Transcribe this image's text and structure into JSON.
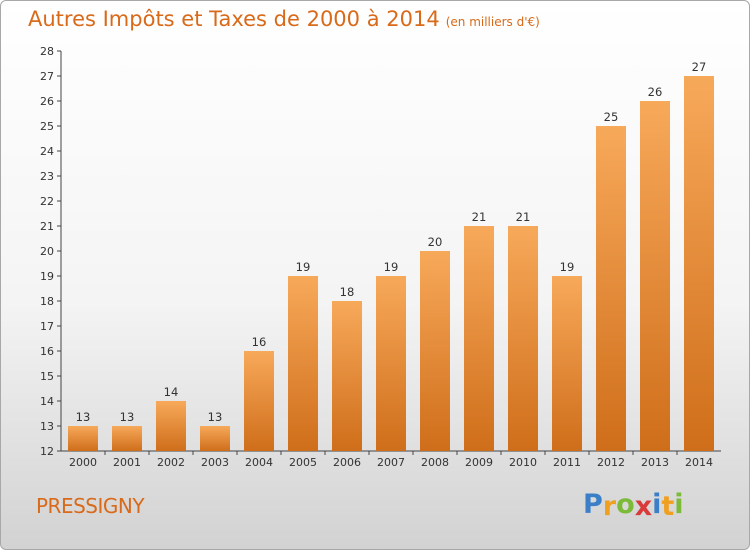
{
  "title": "Autres Impôts et Taxes de 2000 à 2014",
  "subtitle": "(en milliers d'€)",
  "town": "PRESSIGNY",
  "brand": {
    "letters": [
      "P",
      "r",
      "o",
      "x",
      "i",
      "t",
      "i"
    ],
    "colors": [
      "#3a7fc8",
      "#f0a020",
      "#7cbb3a",
      "#d93b3b",
      "#3a7fc8",
      "#f0a020",
      "#7cbb3a"
    ]
  },
  "colors": {
    "bar_top": "#f7a95a",
    "bar_bottom": "#cf6e1a",
    "accent": "#d86a1a"
  },
  "chart_data": {
    "type": "bar",
    "title": "Autres Impôts et Taxes de 2000 à 2014",
    "subtitle": "(en milliers d'€)",
    "xlabel": "",
    "ylabel": "",
    "categories": [
      "2000",
      "2001",
      "2002",
      "2003",
      "2004",
      "2005",
      "2006",
      "2007",
      "2008",
      "2009",
      "2010",
      "2011",
      "2012",
      "2013",
      "2014"
    ],
    "values": [
      13,
      13,
      14,
      13,
      16,
      19,
      18,
      19,
      20,
      21,
      21,
      19,
      25,
      26,
      27
    ],
    "ylim": [
      12,
      28
    ],
    "yticks": [
      12,
      13,
      14,
      15,
      16,
      17,
      18,
      19,
      20,
      21,
      22,
      23,
      24,
      25,
      26,
      27,
      28
    ],
    "grid": false,
    "legend": "none"
  }
}
